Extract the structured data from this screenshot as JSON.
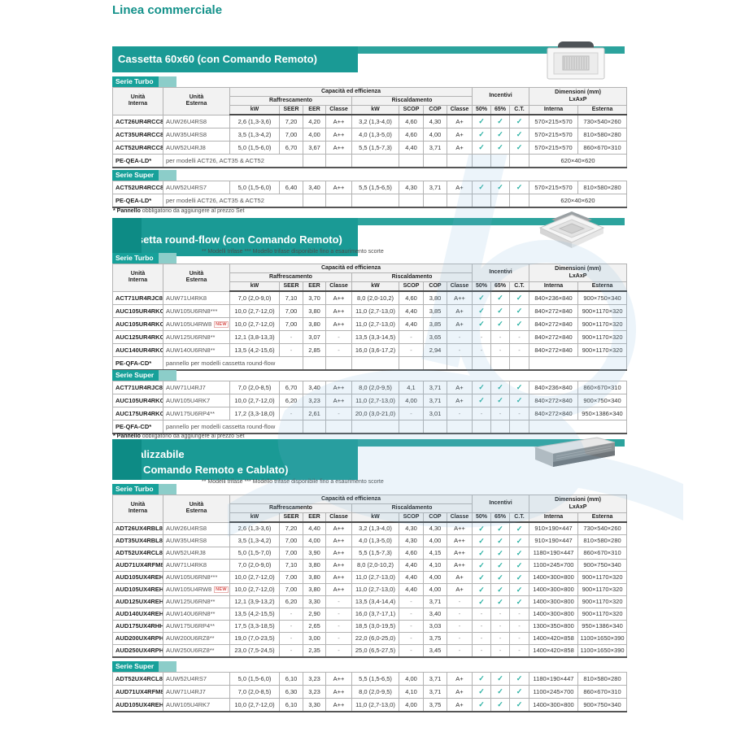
{
  "page": {
    "title": "Linea commerciale"
  },
  "columns": {
    "unit_internal": "Unità\nInterna",
    "unit_external": "Unità\nEsterna",
    "capacity": "Capacità ed efficienza",
    "cooling": "Raffrescamento",
    "heating": "Riscaldamento",
    "kw": "kW",
    "seer": "SEER",
    "eer": "EER",
    "classe": "Classe",
    "scop": "SCOP",
    "cop": "COP",
    "incentives": "Incentivi",
    "inc_cols": [
      "50%",
      "65%",
      "C.T."
    ],
    "dimensions": "Dimensioni (mm)\nLxAxP",
    "dim_internal": "Interna",
    "dim_external": "Esterna"
  },
  "colors": {
    "teal_accent": "#1a9a95",
    "teal_dark": "#0d8b85",
    "check": "#29b0a2",
    "new_badge": "#d9534f"
  },
  "sections": [
    {
      "banner": {
        "line1": "Cassetta 60x60 (con Comando Remoto)"
      },
      "image": "cassette-60x60-unit-photo",
      "footnote": {
        "bold": "* Pannello",
        "rest": "obbligatorio da aggiungere al prezzo Set"
      },
      "tables": [
        {
          "label": "Serie Turbo",
          "header": true,
          "rows": [
            {
              "internal": "ACT26UR4RCC8",
              "external": "AUW26U4RS8",
              "values": [
                "2,6 (1,3-3,6)",
                "7,20",
                "4,20",
                "A++",
                "3,2 (1,3-4,0)",
                "4,60",
                "4,30",
                "A+",
                "✓",
                "✓",
                "✓",
                "570×215×570",
                "730×540×260"
              ]
            },
            {
              "internal": "ACT35UR4RCC8",
              "external": "AUW35U4RS8",
              "values": [
                "3,5 (1,3-4,2)",
                "7,00",
                "4,00",
                "A++",
                "4,0 (1,3-5,0)",
                "4,60",
                "4,00",
                "A+",
                "✓",
                "✓",
                "✓",
                "570×215×570",
                "810×580×280"
              ]
            },
            {
              "internal": "ACT52UR4RCC8",
              "external": "AUW52U4RJ8",
              "values": [
                "5,0 (1,5-6,0)",
                "6,70",
                "3,67",
                "A++",
                "5,5 (1,5-7,3)",
                "4,40",
                "3,71",
                "A+",
                "✓",
                "✓",
                "✓",
                "570×215×570",
                "860×670×310"
              ]
            },
            {
              "accessory": true,
              "internal": "PE-QEA-LD*",
              "note": "per modelli ACT26, ACT35 & ACT52",
              "dim": "620×40×620"
            }
          ]
        },
        {
          "label": "Serie Super",
          "header": false,
          "rows": [
            {
              "internal": "ACT52UR4RCC8",
              "external": "AUW52U4RS7",
              "values": [
                "5,0 (1,5-6,0)",
                "6,40",
                "3,40",
                "A++",
                "5,5 (1,5-6,5)",
                "4,30",
                "3,71",
                "A+",
                "✓",
                "✓",
                "✓",
                "570×215×570",
                "810×580×280"
              ]
            },
            {
              "accessory": true,
              "internal": "PE-QEA-LD*",
              "note": "per modelli ACT26, ACT35 & ACT52",
              "dim": "620×40×620"
            }
          ]
        }
      ]
    },
    {
      "banner": {
        "line1": "Cassetta round-flow (con Comando Remoto)"
      },
      "image": "cassette-round-flow-unit-photo",
      "trifase_note": "** Modelli trifase   *** Modello trifase disponibile fino a esaurimento scorte",
      "footnote": {
        "bold": "* Pannello",
        "rest": "obbligatorio da aggiungere al prezzo Set"
      },
      "tables": [
        {
          "label": "Serie Turbo",
          "header": true,
          "rows": [
            {
              "internal": "ACT71UR4RJC8",
              "external": "AUW71U4RK8",
              "values": [
                "7,0 (2,0-9,0)",
                "7,10",
                "3,70",
                "A++",
                "8,0 (2,0-10,2)",
                "4,60",
                "3,80",
                "A++",
                "✓",
                "✓",
                "✓",
                "840×236×840",
                "900×750×340"
              ]
            },
            {
              "internal": "AUC105UR4RKC8",
              "external": "AUW105U6RN8***",
              "values": [
                "10,0 (2,7-12,0)",
                "7,00",
                "3,80",
                "A++",
                "11,0 (2,7-13,0)",
                "4,40",
                "3,85",
                "A+",
                "✓",
                "✓",
                "✓",
                "840×272×840",
                "900×1170×320"
              ]
            },
            {
              "internal": "AUC105UR4RKC8",
              "external": "AUW105U4RW8",
              "badge": "NEW",
              "values": [
                "10,0 (2,7-12,0)",
                "7,00",
                "3,80",
                "A++",
                "11,0 (2,7-13,0)",
                "4,40",
                "3,85",
                "A+",
                "✓",
                "✓",
                "✓",
                "840×272×840",
                "900×1170×320"
              ]
            },
            {
              "internal": "AUC125UR4RKC8",
              "external": "AUW125U6RN8**",
              "values": [
                "12,1 (3,8-13,3)",
                "-",
                "3,07",
                "-",
                "13,5 (3,3-14,5)",
                "-",
                "3,65",
                "-",
                "-",
                "-",
                "-",
                "840×272×840",
                "900×1170×320"
              ]
            },
            {
              "internal": "AUC140UR4RKC8",
              "external": "AUW140U6RN8**",
              "values": [
                "13,5 (4,2-15,6)",
                "-",
                "2,85",
                "-",
                "16,0 (3,6-17,2)",
                "-",
                "2,94",
                "-",
                "-",
                "-",
                "-",
                "840×272×840",
                "900×1170×320"
              ]
            },
            {
              "accessory": true,
              "internal": "PE-QFA-CD*",
              "note": "pannello per modelli cassetta round-flow",
              "dim": ""
            }
          ]
        },
        {
          "label": "Serie Super",
          "header": false,
          "rows": [
            {
              "internal": "ACT71UR4RJC8",
              "external": "AUW71U4RJ7",
              "values": [
                "7,0 (2,0-8,5)",
                "6,70",
                "3,40",
                "A++",
                "8,0 (2,0-9,5)",
                "4,1",
                "3,71",
                "A+",
                "✓",
                "✓",
                "✓",
                "840×236×840",
                "860×670×310"
              ]
            },
            {
              "internal": "AUC105UR4RKC8",
              "external": "AUW105U4RK7",
              "values": [
                "10,0 (2,7-12,0)",
                "6,20",
                "3,23",
                "A++",
                "11,0 (2,7-13,0)",
                "4,00",
                "3,71",
                "A+",
                "✓",
                "✓",
                "✓",
                "840×272×840",
                "900×750×340"
              ]
            },
            {
              "internal": "AUC175UR4RKC4",
              "external": "AUW175U6RP4**",
              "values": [
                "17,2 (3,3-18,0)",
                "-",
                "2,61",
                "-",
                "20,0 (3,0-21,0)",
                "-",
                "3,01",
                "-",
                "-",
                "-",
                "-",
                "840×272×840",
                "950×1386×340"
              ]
            },
            {
              "accessory": true,
              "internal": "PE-QFA-CD*",
              "note": "pannello per modelli cassetta round-flow",
              "dim": ""
            }
          ]
        }
      ]
    },
    {
      "banner": {
        "line1": "Canalizzabile",
        "line2": "(con Comando Remoto e Cablato)"
      },
      "image": "ducted-unit-photo",
      "trifase_note": "** Modelli trifase   *** Modello trifase disponibile fino a esaurimento scorte",
      "tables": [
        {
          "label": "Serie Turbo",
          "header": true,
          "rows": [
            {
              "internal": "ADT26UX4RBL8",
              "external": "AUW26U4RS8",
              "values": [
                "2,6 (1,3-3,6)",
                "7,20",
                "4,40",
                "A++",
                "3,2 (1,3-4,0)",
                "4,30",
                "4,30",
                "A++",
                "✓",
                "✓",
                "✓",
                "910×190×447",
                "730×540×260"
              ]
            },
            {
              "internal": "ADT35UX4RBL8",
              "external": "AUW35U4RS8",
              "values": [
                "3,5 (1,3-4,2)",
                "7,00",
                "4,00",
                "A++",
                "4,0 (1,3-5,0)",
                "4,30",
                "4,00",
                "A++",
                "✓",
                "✓",
                "✓",
                "910×190×447",
                "810×580×280"
              ]
            },
            {
              "internal": "ADT52UX4RCL8",
              "external": "AUW52U4RJ8",
              "values": [
                "5,0 (1,5-7,0)",
                "7,00",
                "3,90",
                "A++",
                "5,5 (1,5-7,3)",
                "4,60",
                "4,15",
                "A++",
                "✓",
                "✓",
                "✓",
                "1180×190×447",
                "860×670×310"
              ]
            },
            {
              "internal": "AUD71UX4RFM8",
              "external": "AUW71U4RK8",
              "values": [
                "7,0 (2,0-9,0)",
                "7,10",
                "3,80",
                "A++",
                "8,0 (2,0-10,2)",
                "4,40",
                "4,10",
                "A++",
                "✓",
                "✓",
                "✓",
                "1100×245×700",
                "900×750×340"
              ]
            },
            {
              "internal": "AUD105UX4REH8",
              "external": "AUW105U6RN8***",
              "values": [
                "10,0 (2,7-12,0)",
                "7,00",
                "3,80",
                "A++",
                "11,0 (2,7-13,0)",
                "4,40",
                "4,00",
                "A+",
                "✓",
                "✓",
                "✓",
                "1400×300×800",
                "900×1170×320"
              ]
            },
            {
              "internal": "AUD105UX4REH8",
              "external": "AUW105U4RW8",
              "badge": "NEW",
              "values": [
                "10,0 (2,7-12,0)",
                "7,00",
                "3,80",
                "A++",
                "11,0 (2,7-13,0)",
                "4,40",
                "4,00",
                "A+",
                "✓",
                "✓",
                "✓",
                "1400×300×800",
                "900×1170×320"
              ]
            },
            {
              "internal": "AUD125UX4REH8",
              "external": "AUW125U6RN8**",
              "values": [
                "12,1 (3,9-13,2)",
                "6,20",
                "3,30",
                "-",
                "13,5 (3,4-14,4)",
                "-",
                "3,71",
                "-",
                "✓",
                "✓",
                "✓",
                "1400×300×800",
                "900×1170×320"
              ]
            },
            {
              "internal": "AUD140UX4REH8",
              "external": "AUW140U6RN8**",
              "values": [
                "13,5 (4,2-15,5)",
                "-",
                "2,90",
                "-",
                "16,0 (3,7-17,1)",
                "-",
                "3,40",
                "-",
                "-",
                "-",
                "-",
                "1400×300×800",
                "900×1170×320"
              ]
            },
            {
              "internal": "AUD175UX4RHH5",
              "external": "AUW175U6RP4**",
              "values": [
                "17,5 (3,3-18,5)",
                "-",
                "2,65",
                "-",
                "18,5 (3,0-19,5)",
                "-",
                "3,03",
                "-",
                "-",
                "-",
                "-",
                "1300×350×800",
                "950×1386×340"
              ]
            },
            {
              "internal": "AUD200UX4RPH8",
              "external": "AUW200U6RZ8**",
              "values": [
                "19,0 (7,0-23,5)",
                "-",
                "3,00",
                "-",
                "22,0 (6,0-25,0)",
                "-",
                "3,75",
                "-",
                "-",
                "-",
                "-",
                "1400×420×858",
                "1100×1650×390"
              ]
            },
            {
              "internal": "AUD250UX4RPH8",
              "external": "AUW250U6RZ8**",
              "values": [
                "23,0 (7,5-24,5)",
                "-",
                "2,35",
                "-",
                "25,0 (6,5-27,5)",
                "-",
                "3,45",
                "-",
                "-",
                "-",
                "-",
                "1400×420×858",
                "1100×1650×390"
              ]
            }
          ]
        },
        {
          "label": "Serie Super",
          "header": false,
          "rows": [
            {
              "internal": "ADT52UX4RCL8",
              "external": "AUW52U4RS7",
              "values": [
                "5,0 (1,5-6,0)",
                "6,10",
                "3,23",
                "A++",
                "5,5 (1,5-6,5)",
                "4,00",
                "3,71",
                "A+",
                "✓",
                "✓",
                "✓",
                "1180×190×447",
                "810×580×280"
              ]
            },
            {
              "internal": "AUD71UX4RFM8",
              "external": "AUW71U4RJ7",
              "values": [
                "7,0 (2,0-8,5)",
                "6,30",
                "3,23",
                "A++",
                "8,0 (2,0-9,5)",
                "4,10",
                "3,71",
                "A+",
                "✓",
                "✓",
                "✓",
                "1100×245×700",
                "860×670×310"
              ]
            },
            {
              "internal": "AUD105UX4REH8",
              "external": "AUW105U4RK7",
              "values": [
                "10,0 (2,7-12,0)",
                "6,10",
                "3,30",
                "A++",
                "11,0 (2,7-13,0)",
                "4,00",
                "3,75",
                "A+",
                "✓",
                "✓",
                "✓",
                "1400×300×800",
                "900×750×340"
              ]
            }
          ]
        }
      ]
    }
  ]
}
